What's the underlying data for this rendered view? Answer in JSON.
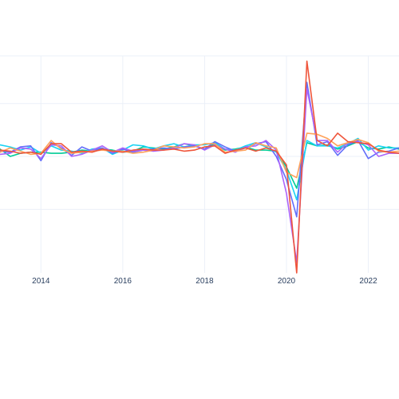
{
  "chart_data": {
    "type": "line",
    "title": "",
    "xlabel": "",
    "ylabel": "",
    "x_ticks": [
      "2014",
      "2016",
      "2018",
      "2020",
      "2022"
    ],
    "x_tick_values": [
      2014,
      2016,
      2018,
      2020,
      2022
    ],
    "xlim": [
      2013.0,
      2022.75
    ],
    "ylim": [
      -11,
      9.5
    ],
    "y_grid_values": [
      -5,
      0,
      5
    ],
    "grid": true,
    "legend": "none",
    "x": [
      2013.0,
      2013.25,
      2013.5,
      2013.75,
      2014.0,
      2014.25,
      2014.5,
      2014.75,
      2015.0,
      2015.25,
      2015.5,
      2015.75,
      2016.0,
      2016.25,
      2016.5,
      2016.75,
      2017.0,
      2017.25,
      2017.5,
      2017.75,
      2018.0,
      2018.25,
      2018.5,
      2018.75,
      2019.0,
      2019.25,
      2019.5,
      2019.75,
      2020.0,
      2020.25,
      2020.5,
      2020.75,
      2021.0,
      2021.25,
      2021.5,
      2021.75,
      2022.0,
      2022.25,
      2022.5,
      2022.75
    ],
    "series": [
      {
        "color": "#00cc96",
        "values": [
          0.7,
          0.0,
          0.3,
          0.4,
          0.4,
          0.3,
          0.3,
          0.4,
          0.6,
          0.5,
          0.7,
          0.6,
          0.4,
          0.5,
          0.9,
          0.8,
          0.7,
          0.9,
          1.2,
          1.0,
          0.7,
          1.2,
          0.6,
          0.7,
          0.9,
          0.6,
          0.6,
          0.5,
          -1.0,
          -3.0,
          1.3,
          1.0,
          1.1,
          0.7,
          1.0,
          1.4,
          0.8,
          0.7,
          0.9,
          0.7
        ]
      },
      {
        "color": "#19d3f3",
        "values": [
          1.1,
          0.9,
          0.6,
          0.9,
          0.3,
          1.0,
          0.6,
          0.5,
          0.3,
          0.7,
          0.8,
          0.2,
          0.6,
          1.1,
          1.0,
          0.7,
          1.0,
          1.2,
          0.9,
          1.1,
          1.1,
          1.3,
          0.7,
          0.6,
          1.0,
          1.3,
          0.9,
          0.4,
          -1.3,
          -4.1,
          1.5,
          1.0,
          1.0,
          0.8,
          1.2,
          1.7,
          0.6,
          1.0,
          0.8,
          0.8
        ]
      },
      {
        "color": "#636efa",
        "values": [
          0.5,
          0.4,
          0.9,
          1.0,
          -0.4,
          1.3,
          0.8,
          0.1,
          0.9,
          0.5,
          0.8,
          0.3,
          0.7,
          0.4,
          0.6,
          0.7,
          0.8,
          0.7,
          0.9,
          1.0,
          0.7,
          1.4,
          0.9,
          0.5,
          0.8,
          1.2,
          1.4,
          0.0,
          -2.2,
          -5.7,
          7.0,
          1.1,
          1.4,
          0.1,
          1.1,
          1.5,
          -0.2,
          0.4,
          0.5,
          0.8
        ]
      },
      {
        "color": "#ab63fa",
        "values": [
          0.2,
          0.3,
          0.8,
          0.7,
          -0.2,
          1.1,
          1.0,
          0.0,
          0.2,
          0.6,
          1.0,
          0.4,
          0.8,
          0.5,
          0.6,
          0.5,
          0.6,
          0.8,
          1.2,
          1.1,
          0.6,
          1.1,
          0.7,
          0.4,
          0.9,
          1.0,
          1.5,
          0.6,
          -3.5,
          -10.0,
          6.4,
          1.5,
          1.5,
          0.4,
          1.3,
          1.4,
          1.1,
          0.0,
          0.3,
          0.3
        ]
      },
      {
        "color": "#ffa15a",
        "values": [
          0.4,
          0.8,
          0.5,
          0.2,
          0.3,
          1.5,
          0.7,
          0.3,
          0.4,
          0.5,
          0.6,
          0.5,
          0.5,
          0.3,
          0.4,
          0.6,
          1.0,
          0.9,
          0.8,
          0.9,
          1.2,
          1.2,
          0.4,
          0.5,
          0.6,
          1.3,
          1.0,
          0.8,
          -1.5,
          -2.0,
          2.2,
          2.1,
          1.7,
          1.0,
          1.3,
          1.6,
          1.3,
          0.5,
          0.4,
          0.5
        ]
      },
      {
        "color": "#ef553b",
        "values": [
          0.6,
          0.5,
          0.3,
          0.4,
          0.2,
          1.2,
          1.2,
          0.4,
          0.5,
          0.4,
          0.7,
          0.5,
          0.4,
          0.6,
          0.7,
          0.6,
          0.6,
          0.7,
          0.5,
          0.6,
          0.9,
          1.0,
          0.3,
          0.6,
          0.8,
          0.5,
          0.8,
          0.5,
          -0.8,
          -11.0,
          9.0,
          1.5,
          1.0,
          2.2,
          1.4,
          1.3,
          1.2,
          0.6,
          0.4,
          0.3
        ]
      }
    ]
  }
}
